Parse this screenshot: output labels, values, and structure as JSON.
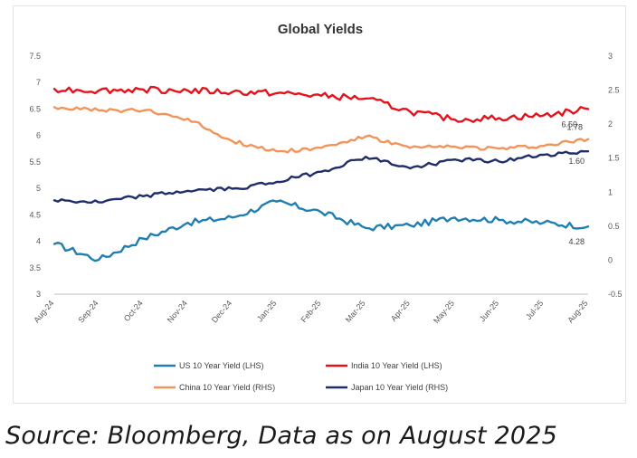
{
  "chart_data": {
    "type": "line",
    "title": "Global Yields",
    "xlabel": "",
    "ylabel_left": "",
    "ylabel_right": "",
    "x_categories": [
      "Aug-24",
      "Sep-24",
      "Oct-24",
      "Nov-24",
      "Dec-24",
      "Jan-25",
      "Feb-25",
      "Mar-25",
      "Apr-25",
      "May-25",
      "Jun-25",
      "Jul-25",
      "Aug-25"
    ],
    "y_left": {
      "ticks": [
        "7.5",
        "7",
        "6.5",
        "6",
        "5.5",
        "5",
        "4.5",
        "4",
        "3.5",
        "3"
      ],
      "range": [
        3,
        7.5
      ]
    },
    "y_right": {
      "ticks": [
        "3",
        "2.5",
        "2",
        "1.5",
        "1",
        "0.5",
        "0",
        "-0.5"
      ],
      "range": [
        -0.5,
        3
      ]
    },
    "grid": false,
    "legend_position": "bottom",
    "series": [
      {
        "name": "US 10 Year Yield (LHS)",
        "axis": "left",
        "color": "#1f7fb3",
        "values": [
          3.95,
          3.65,
          4.05,
          4.35,
          4.45,
          4.75,
          4.55,
          4.25,
          4.3,
          4.45,
          4.4,
          4.35,
          4.28
        ]
      },
      {
        "name": "India 10 Year Yield (LHS)",
        "axis": "left",
        "color": "#e3121c",
        "values": [
          6.88,
          6.85,
          6.87,
          6.85,
          6.82,
          6.8,
          6.75,
          6.7,
          6.45,
          6.3,
          6.33,
          6.38,
          6.5
        ]
      },
      {
        "name": "China 10 Year Yield (RHS)",
        "axis": "right",
        "color": "#f2945a",
        "values": [
          2.25,
          2.2,
          2.2,
          2.08,
          1.75,
          1.6,
          1.65,
          1.82,
          1.65,
          1.67,
          1.64,
          1.68,
          1.78
        ]
      },
      {
        "name": "Japan 10 Year Yield (RHS)",
        "axis": "right",
        "color": "#1f2d6b",
        "values": [
          0.88,
          0.85,
          0.94,
          1.02,
          1.05,
          1.15,
          1.3,
          1.52,
          1.35,
          1.48,
          1.45,
          1.55,
          1.6
        ]
      }
    ],
    "end_labels": [
      {
        "text": "6.50",
        "series": 1
      },
      {
        "text": "1.78",
        "series": 2
      },
      {
        "text": "1.60",
        "series": 3
      },
      {
        "text": "4.28",
        "series": 0
      }
    ]
  },
  "source": "Source: Bloomberg, Data as on August 2025"
}
